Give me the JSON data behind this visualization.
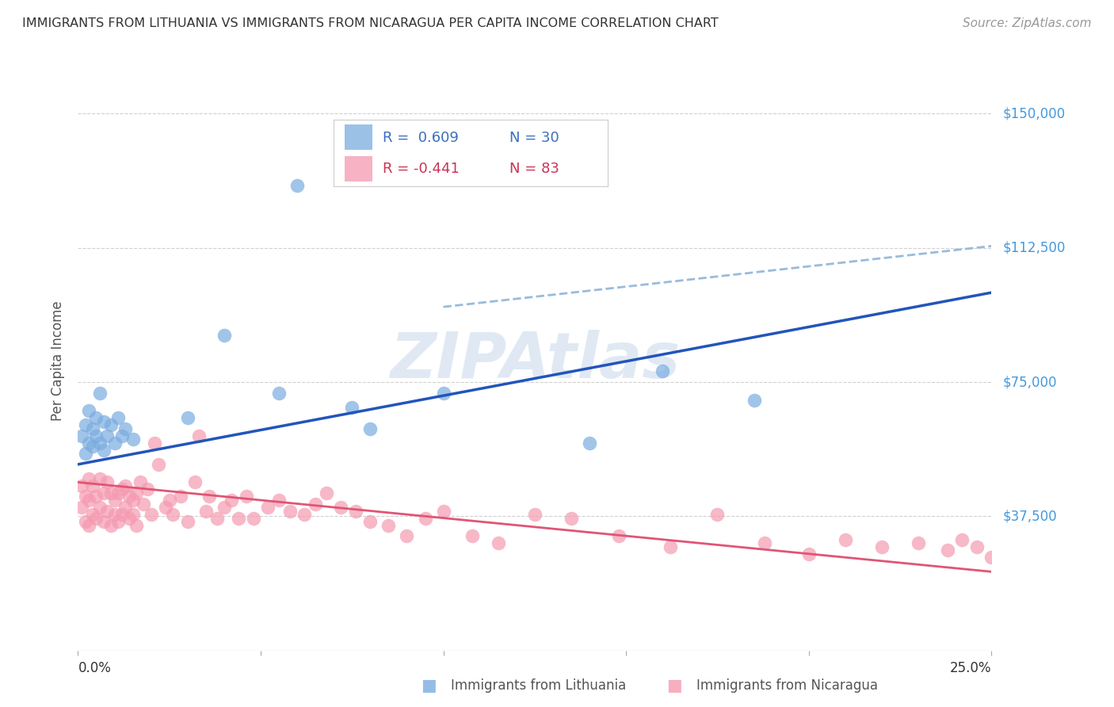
{
  "title": "IMMIGRANTS FROM LITHUANIA VS IMMIGRANTS FROM NICARAGUA PER CAPITA INCOME CORRELATION CHART",
  "source": "Source: ZipAtlas.com",
  "ylabel": "Per Capita Income",
  "xlim": [
    0.0,
    0.25
  ],
  "ylim": [
    0,
    162000
  ],
  "yticks": [
    0,
    37500,
    75000,
    112500,
    150000
  ],
  "ytick_labels": [
    "",
    "$37,500",
    "$75,000",
    "$112,500",
    "$150,000"
  ],
  "grid_color": "#d0d0d0",
  "background_color": "#ffffff",
  "watermark": "ZIPAtlas",
  "lithuania_color": "#7aace0",
  "nicaragua_color": "#f59ab0",
  "lithuania_line_color": "#2255bb",
  "nicaragua_line_color": "#e05575",
  "dashed_line_color": "#99bbdd",
  "legend_R_lith": "R =  0.609",
  "legend_N_lith": "N = 30",
  "legend_R_nic": "R = -0.441",
  "legend_N_nic": "N = 83",
  "lithuania_x": [
    0.001,
    0.002,
    0.002,
    0.003,
    0.003,
    0.004,
    0.004,
    0.005,
    0.005,
    0.006,
    0.006,
    0.007,
    0.007,
    0.008,
    0.009,
    0.01,
    0.011,
    0.012,
    0.013,
    0.015,
    0.03,
    0.04,
    0.055,
    0.06,
    0.075,
    0.08,
    0.1,
    0.14,
    0.16,
    0.185
  ],
  "lithuania_y": [
    60000,
    63000,
    55000,
    67000,
    58000,
    62000,
    57000,
    65000,
    60000,
    72000,
    58000,
    64000,
    56000,
    60000,
    63000,
    58000,
    65000,
    60000,
    62000,
    59000,
    65000,
    88000,
    72000,
    130000,
    68000,
    62000,
    72000,
    58000,
    78000,
    70000
  ],
  "nicaragua_x": [
    0.001,
    0.001,
    0.002,
    0.002,
    0.003,
    0.003,
    0.003,
    0.004,
    0.004,
    0.005,
    0.005,
    0.006,
    0.006,
    0.007,
    0.007,
    0.008,
    0.008,
    0.009,
    0.009,
    0.01,
    0.01,
    0.011,
    0.011,
    0.012,
    0.012,
    0.013,
    0.013,
    0.014,
    0.014,
    0.015,
    0.015,
    0.016,
    0.016,
    0.017,
    0.018,
    0.019,
    0.02,
    0.021,
    0.022,
    0.024,
    0.025,
    0.026,
    0.028,
    0.03,
    0.032,
    0.033,
    0.035,
    0.036,
    0.038,
    0.04,
    0.042,
    0.044,
    0.046,
    0.048,
    0.052,
    0.055,
    0.058,
    0.062,
    0.065,
    0.068,
    0.072,
    0.076,
    0.08,
    0.085,
    0.09,
    0.095,
    0.1,
    0.108,
    0.115,
    0.125,
    0.135,
    0.148,
    0.162,
    0.175,
    0.188,
    0.2,
    0.21,
    0.22,
    0.23,
    0.238,
    0.242,
    0.246,
    0.25
  ],
  "nicaragua_y": [
    46000,
    40000,
    43000,
    36000,
    48000,
    42000,
    35000,
    46000,
    38000,
    43000,
    37000,
    48000,
    40000,
    44000,
    36000,
    47000,
    39000,
    44000,
    35000,
    42000,
    38000,
    44000,
    36000,
    45000,
    38000,
    46000,
    40000,
    43000,
    37000,
    42000,
    38000,
    44000,
    35000,
    47000,
    41000,
    45000,
    38000,
    58000,
    52000,
    40000,
    42000,
    38000,
    43000,
    36000,
    47000,
    60000,
    39000,
    43000,
    37000,
    40000,
    42000,
    37000,
    43000,
    37000,
    40000,
    42000,
    39000,
    38000,
    41000,
    44000,
    40000,
    39000,
    36000,
    35000,
    32000,
    37000,
    39000,
    32000,
    30000,
    38000,
    37000,
    32000,
    29000,
    38000,
    30000,
    27000,
    31000,
    29000,
    30000,
    28000,
    31000,
    29000,
    26000
  ],
  "lith_line_x0": 0.0,
  "lith_line_x1": 0.25,
  "lith_line_y0": 52000,
  "lith_line_y1": 100000,
  "nic_line_x0": 0.0,
  "nic_line_x1": 0.25,
  "nic_line_y0": 47000,
  "nic_line_y1": 22000,
  "dash_line_x0": 0.1,
  "dash_line_x1": 0.25,
  "dash_line_y0": 96000,
  "dash_line_y1": 113000
}
